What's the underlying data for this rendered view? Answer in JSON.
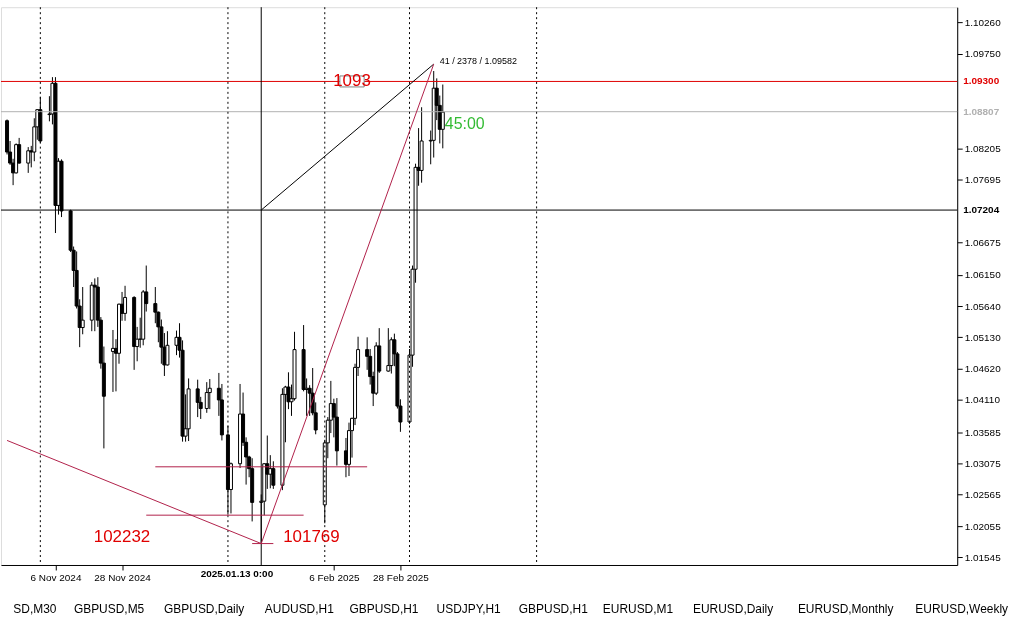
{
  "chart_data": {
    "type": "candlestick",
    "x": [
      "2024-10-21",
      "2024-10-22",
      "2024-10-23",
      "2024-10-24",
      "2024-10-25",
      "2024-10-28",
      "2024-10-29",
      "2024-10-30",
      "2024-10-31",
      "2024-11-01",
      "2024-11-04",
      "2024-11-05",
      "2024-11-06",
      "2024-11-07",
      "2024-11-08",
      "2024-11-11",
      "2024-11-12",
      "2024-11-13",
      "2024-11-14",
      "2024-11-15",
      "2024-11-18",
      "2024-11-19",
      "2024-11-20",
      "2024-11-21",
      "2024-11-22",
      "2024-11-25",
      "2024-11-26",
      "2024-11-27",
      "2024-11-28",
      "2024-11-29",
      "2024-12-02",
      "2024-12-03",
      "2024-12-04",
      "2024-12-05",
      "2024-12-06",
      "2024-12-09",
      "2024-12-10",
      "2024-12-11",
      "2024-12-12",
      "2024-12-13",
      "2024-12-16",
      "2024-12-17",
      "2024-12-18",
      "2024-12-19",
      "2024-12-20",
      "2024-12-23",
      "2024-12-24",
      "2024-12-26",
      "2024-12-27",
      "2024-12-30",
      "2024-12-31",
      "2025-01-02",
      "2025-01-03",
      "2025-01-06",
      "2025-01-07",
      "2025-01-08",
      "2025-01-09",
      "2025-01-10",
      "2025-01-13",
      "2025-01-14",
      "2025-01-15",
      "2025-01-16",
      "2025-01-17",
      "2025-01-20",
      "2025-01-21",
      "2025-01-22",
      "2025-01-23",
      "2025-01-24",
      "2025-01-27",
      "2025-01-28",
      "2025-01-29",
      "2025-01-30",
      "2025-01-31",
      "2025-02-03",
      "2025-02-04",
      "2025-02-05",
      "2025-02-06",
      "2025-02-07",
      "2025-02-10",
      "2025-02-11",
      "2025-02-12",
      "2025-02-13",
      "2025-02-14",
      "2025-02-17",
      "2025-02-18",
      "2025-02-19",
      "2025-02-20",
      "2025-02-21",
      "2025-02-24",
      "2025-02-25",
      "2025-02-26",
      "2025-02-27",
      "2025-02-28",
      "2025-03-03",
      "2025-03-04",
      "2025-03-05",
      "2025-03-06",
      "2025-03-07",
      "2025-03-10",
      "2025-03-11",
      "2025-03-12",
      "2025-03-13",
      "2025-03-14"
    ],
    "ohlc": [
      [
        1.0866,
        1.0868,
        1.0811,
        1.0815
      ],
      [
        1.0815,
        1.0833,
        1.0794,
        1.0797
      ],
      [
        1.0797,
        1.0804,
        1.0761,
        1.0781
      ],
      [
        1.0781,
        1.0829,
        1.078,
        1.0827
      ],
      [
        1.0827,
        1.0838,
        1.0796,
        1.0797
      ],
      [
        1.0797,
        1.0823,
        1.0781,
        1.0817
      ],
      [
        1.0817,
        1.0825,
        1.079,
        1.0815
      ],
      [
        1.0815,
        1.087,
        1.08,
        1.0856
      ],
      [
        1.0856,
        1.0885,
        1.0835,
        1.0884
      ],
      [
        1.0884,
        1.0905,
        1.083,
        1.0833
      ],
      [
        1.0876,
        1.0906,
        1.0865,
        1.0877
      ],
      [
        1.0877,
        1.0937,
        1.086,
        1.0927
      ],
      [
        1.0927,
        1.0937,
        1.0683,
        1.0728
      ],
      [
        1.0728,
        1.0805,
        1.0713,
        1.08
      ],
      [
        1.08,
        1.0803,
        1.0709,
        1.0719
      ],
      [
        1.0719,
        1.0721,
        1.0652,
        1.0655
      ],
      [
        1.0655,
        1.0661,
        1.0595,
        1.0622
      ],
      [
        1.0622,
        1.0653,
        1.056,
        1.0564
      ],
      [
        1.0564,
        1.0575,
        1.0497,
        1.0529
      ],
      [
        1.0529,
        1.0595,
        1.0518,
        1.0541
      ],
      [
        1.0541,
        1.0603,
        1.0523,
        1.0598
      ],
      [
        1.0598,
        1.0609,
        1.0523,
        1.0595
      ],
      [
        1.0595,
        1.0611,
        1.053,
        1.0541
      ],
      [
        1.0541,
        1.0546,
        1.0462,
        1.0471
      ],
      [
        1.0471,
        1.0498,
        1.0332,
        1.0417
      ],
      [
        1.049,
        1.0525,
        1.0424,
        1.0495
      ],
      [
        1.0495,
        1.051,
        1.0425,
        1.0487
      ],
      [
        1.0487,
        1.0568,
        1.047,
        1.0567
      ],
      [
        1.0567,
        1.0587,
        1.054,
        1.0552
      ],
      [
        1.0552,
        1.0597,
        1.054,
        1.0578
      ],
      [
        1.0578,
        1.058,
        1.046,
        1.0498
      ],
      [
        1.0498,
        1.053,
        1.0474,
        1.051
      ],
      [
        1.051,
        1.0545,
        1.0496,
        1.051
      ],
      [
        1.051,
        1.059,
        1.05,
        1.0587
      ],
      [
        1.0587,
        1.063,
        1.0555,
        1.0568
      ],
      [
        1.0568,
        1.0595,
        1.0536,
        1.0554
      ],
      [
        1.0554,
        1.0555,
        1.0505,
        1.053
      ],
      [
        1.053,
        1.0542,
        1.047,
        1.0497
      ],
      [
        1.0497,
        1.052,
        1.045,
        1.0468
      ],
      [
        1.0468,
        1.0523,
        1.0467,
        1.05
      ],
      [
        1.05,
        1.0524,
        1.0484,
        1.0513
      ],
      [
        1.0513,
        1.0536,
        1.048,
        1.0492
      ],
      [
        1.0492,
        1.0508,
        1.0343,
        1.0352
      ],
      [
        1.0352,
        1.042,
        1.0343,
        1.0364
      ],
      [
        1.0364,
        1.0446,
        1.0344,
        1.0429
      ],
      [
        1.0429,
        1.0444,
        1.0383,
        1.0407
      ],
      [
        1.0407,
        1.0416,
        1.038,
        1.0397
      ],
      [
        1.0397,
        1.044,
        1.039,
        1.0423
      ],
      [
        1.0423,
        1.0445,
        1.0396,
        1.043
      ],
      [
        1.043,
        1.0455,
        1.0385,
        1.0411
      ],
      [
        1.0411,
        1.0437,
        1.0345,
        1.0354
      ],
      [
        1.0354,
        1.0369,
        1.0224,
        1.0265
      ],
      [
        1.0265,
        1.0309,
        1.0226,
        1.0307
      ],
      [
        1.0307,
        1.0437,
        1.03,
        1.0388
      ],
      [
        1.0388,
        1.0423,
        1.0336,
        1.0342
      ],
      [
        1.0342,
        1.035,
        1.0273,
        1.0318
      ],
      [
        1.0318,
        1.032,
        1.0285,
        1.0299
      ],
      [
        1.0299,
        1.0316,
        1.0213,
        1.0244
      ],
      [
        1.0244,
        1.0257,
        1.0177,
        1.0246
      ],
      [
        1.0246,
        1.0308,
        1.0223,
        1.0307
      ],
      [
        1.0307,
        1.0353,
        1.0266,
        1.029
      ],
      [
        1.029,
        1.0321,
        1.0267,
        1.0299
      ],
      [
        1.0299,
        1.0311,
        1.0266,
        1.0272
      ],
      [
        1.0272,
        1.043,
        1.0264,
        1.042
      ],
      [
        1.042,
        1.0434,
        1.0342,
        1.0432
      ],
      [
        1.0432,
        1.0456,
        1.0396,
        1.0408
      ],
      [
        1.0408,
        1.0436,
        1.0385,
        1.0413
      ],
      [
        1.0413,
        1.0522,
        1.041,
        1.0493
      ],
      [
        1.0493,
        1.0533,
        1.0425,
        1.0428
      ],
      [
        1.0428,
        1.0446,
        1.0385,
        1.043
      ],
      [
        1.043,
        1.0435,
        1.0385,
        1.0422
      ],
      [
        1.0422,
        1.0463,
        1.0386,
        1.039
      ],
      [
        1.039,
        1.0407,
        1.0355,
        1.0362
      ],
      [
        1.024,
        1.0346,
        1.021,
        1.0341
      ],
      [
        1.0341,
        1.0383,
        1.0316,
        1.0378
      ],
      [
        1.0378,
        1.0442,
        1.0357,
        1.0405
      ],
      [
        1.0405,
        1.0413,
        1.035,
        1.0383
      ],
      [
        1.0383,
        1.0414,
        1.0304,
        1.0328
      ],
      [
        1.0328,
        1.0349,
        1.0285,
        1.0306
      ],
      [
        1.0306,
        1.0374,
        1.0287,
        1.0361
      ],
      [
        1.0361,
        1.0382,
        1.0317,
        1.0381
      ],
      [
        1.0381,
        1.047,
        1.037,
        1.0464
      ],
      [
        1.0464,
        1.0514,
        1.045,
        1.0493
      ],
      [
        1.0493,
        1.0513,
        1.046,
        1.0482
      ],
      [
        1.0482,
        1.0494,
        1.0436,
        1.0449
      ],
      [
        1.0449,
        1.0457,
        1.0401,
        1.0422
      ],
      [
        1.0422,
        1.0505,
        1.0419,
        1.0499
      ],
      [
        1.0499,
        1.0528,
        1.0455,
        1.0458
      ],
      [
        1.0458,
        1.0528,
        1.0457,
        1.0467
      ],
      [
        1.0467,
        1.0513,
        1.0454,
        1.0509
      ],
      [
        1.0509,
        1.0519,
        1.0466,
        1.0486
      ],
      [
        1.0486,
        1.0489,
        1.0397,
        1.0401
      ],
      [
        1.0401,
        1.0412,
        1.0359,
        1.0375
      ],
      [
        1.0375,
        1.0494,
        1.0372,
        1.0484
      ],
      [
        1.0484,
        1.063,
        1.0465,
        1.0624
      ],
      [
        1.0624,
        1.0796,
        1.0602,
        1.079
      ],
      [
        1.079,
        1.0854,
        1.076,
        1.0785
      ],
      [
        1.0785,
        1.0888,
        1.0765,
        1.0833
      ],
      [
        1.0833,
        1.085,
        1.0795,
        1.0834
      ],
      [
        1.0834,
        1.0947,
        1.0806,
        1.0919
      ],
      [
        1.0919,
        1.0935,
        1.0867,
        1.0891
      ],
      [
        1.0891,
        1.0907,
        1.0829,
        1.0852
      ],
      [
        1.0852,
        1.0925,
        1.0821,
        1.088
      ]
    ],
    "series": [
      {
        "type": "line",
        "color": "#000000",
        "x": [
          "2025-01-13",
          "2025-03-11"
        ],
        "values": [
          1.07204,
          1.09582
        ]
      },
      {
        "type": "line",
        "color": "#b0204a",
        "x": [
          "2024-10-21",
          "2025-01-13",
          "2025-03-11"
        ],
        "values": [
          1.0345,
          1.01769,
          1.09582
        ]
      },
      {
        "type": "line",
        "color": "#b0204a",
        "x": [
          "2024-12-09",
          "2025-02-17"
        ],
        "values": [
          1.0302,
          1.0302
        ]
      },
      {
        "type": "line",
        "color": "#b0204a",
        "x": [
          "2024-12-06",
          "2025-01-27"
        ],
        "values": [
          1.02232,
          1.02232
        ]
      },
      {
        "type": "line",
        "color": "#b0204a",
        "x": [
          "2025-01-10",
          "2025-01-17"
        ],
        "values": [
          1.01769,
          1.01769
        ]
      }
    ],
    "xlim": [
      "2024-10-19",
      "2025-08-31"
    ],
    "xticks": [
      {
        "value": "2024-11-06",
        "label": "6 Nov 2024"
      },
      {
        "value": "2024-11-28",
        "label": "28 Nov 2024"
      },
      {
        "value": "2025-02-06",
        "label": "6 Feb 2025"
      },
      {
        "value": "2025-02-28",
        "label": "28 Feb 2025"
      }
    ],
    "ylim": [
      1.0142,
      1.1051
    ],
    "yticks": [
      {
        "value": 1.1026,
        "label": "1.10260"
      },
      {
        "value": 1.0975,
        "label": "1.09750"
      },
      {
        "value": 1.08205,
        "label": "1.08205"
      },
      {
        "value": 1.07695,
        "label": "1.07695"
      },
      {
        "value": 1.06675,
        "label": "1.06675"
      },
      {
        "value": 1.0615,
        "label": "1.06150"
      },
      {
        "value": 1.0564,
        "label": "1.05640"
      },
      {
        "value": 1.0513,
        "label": "1.05130"
      },
      {
        "value": 1.0462,
        "label": "1.04620"
      },
      {
        "value": 1.0411,
        "label": "1.04110"
      },
      {
        "value": 1.03585,
        "label": "1.03585"
      },
      {
        "value": 1.03075,
        "label": "1.03075"
      },
      {
        "value": 1.02565,
        "label": "1.02565"
      },
      {
        "value": 1.02055,
        "label": "1.02055"
      },
      {
        "value": 1.01545,
        "label": "1.01545"
      }
    ],
    "ref_lines": [
      {
        "axis": "y",
        "value": 1.093,
        "label": "1.09300",
        "color": "#e00000"
      },
      {
        "axis": "y",
        "value": 1.08807,
        "label": "1.08807",
        "color": "#b0b0b0"
      },
      {
        "axis": "y",
        "value": 1.07204,
        "label": "1.07204",
        "color": "#000000"
      },
      {
        "axis": "x",
        "value": "2025-01-13",
        "label": "2025.01.13 0:00",
        "color": "#000000"
      },
      {
        "axis": "x",
        "value": "2024-11-01",
        "label": null,
        "color": "#000000",
        "line_style": "dotted"
      },
      {
        "axis": "x",
        "value": "2025-01-02",
        "label": null,
        "color": "#000000",
        "line_style": "dotted"
      },
      {
        "axis": "x",
        "value": "2025-02-03",
        "label": null,
        "color": "#000000",
        "line_style": "dotted"
      },
      {
        "axis": "x",
        "value": "2025-03-03",
        "label": null,
        "color": "#000000",
        "line_style": "dotted"
      },
      {
        "axis": "x",
        "value": "2025-04-14",
        "label": null,
        "color": "#000000",
        "line_style": "dotted"
      }
    ],
    "annotations": [
      {
        "text": "1093",
        "x": "2025-02-12",
        "y": 1.093
      },
      {
        "text": "41 / 2378 / 1.09582",
        "x": "2025-03-11",
        "y": 1.09582
      },
      {
        "text": "45:00",
        "x": "2025-03-14",
        "y": 1.088
      },
      {
        "text": "102232",
        "x": "2024-12-06",
        "y": 1.02232
      },
      {
        "text": "101769",
        "x": "2025-01-13",
        "y": 1.01769
      },
      "SD,M30",
      "GBPUSD,M5",
      "GBPUSD,Daily",
      "AUDUSD,H1",
      "GBPUSD,H1",
      "USDJPY,H1",
      "GBPUSD,H1",
      "EURUSD,M1",
      "EURUSD,Daily",
      "EURUSD,Monthly",
      "EURUSD,Weekly"
    ]
  }
}
